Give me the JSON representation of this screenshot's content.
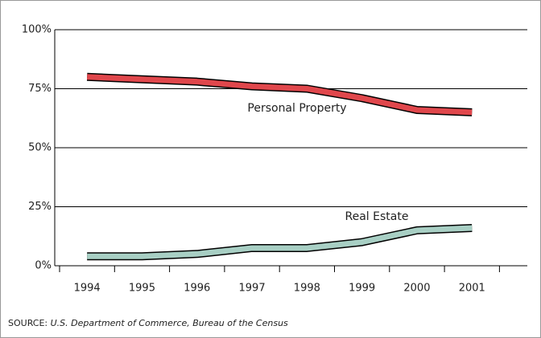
{
  "chart_data": {
    "type": "line",
    "categories": [
      "1994",
      "1995",
      "1996",
      "1997",
      "1998",
      "1999",
      "2000",
      "2001"
    ],
    "series": [
      {
        "name": "Personal Property",
        "color": "#e0474c",
        "values": [
          80,
          79,
          78,
          76,
          75,
          71,
          66,
          65
        ]
      },
      {
        "name": "Real Estate",
        "color": "#a8cfc4",
        "values": [
          4,
          4,
          5,
          7.5,
          7.5,
          10,
          15,
          16
        ]
      }
    ],
    "ylim": [
      0,
      100
    ],
    "yticks": [
      {
        "value": 0,
        "label": "0%"
      },
      {
        "value": 25,
        "label": "25%"
      },
      {
        "value": 50,
        "label": "50%"
      },
      {
        "value": 75,
        "label": "75%"
      },
      {
        "value": 100,
        "label": "100%"
      }
    ],
    "grid": true,
    "source_label": "SOURCE:",
    "source": "U.S. Department of Commerce, Bureau of the Census"
  }
}
